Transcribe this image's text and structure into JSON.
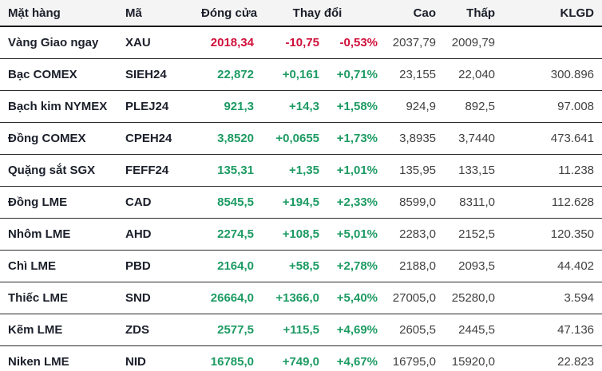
{
  "table": {
    "colors": {
      "up": "#1d9b63",
      "down": "#d0103a",
      "header_text": "#1b1f2a",
      "secondary_text": "#414141",
      "header_background": "#f4f4f4",
      "row_border": "#2b2b2b"
    },
    "headers": {
      "name": "Mặt hàng",
      "code": "Mã",
      "close": "Đóng cửa",
      "change": "Thay đổi",
      "high": "Cao",
      "low": "Thấp",
      "volume": "KLGD"
    },
    "rows": [
      {
        "name": "Vàng Giao ngay",
        "code": "XAU",
        "close": "2018,34",
        "change": "-10,75",
        "change_pct": "-0,53%",
        "high": "2037,79",
        "low": "2009,79",
        "volume": "",
        "direction": "down"
      },
      {
        "name": "Bạc COMEX",
        "code": "SIEH24",
        "close": "22,872",
        "change": "+0,161",
        "change_pct": "+0,71%",
        "high": "23,155",
        "low": "22,040",
        "volume": "300.896",
        "direction": "up"
      },
      {
        "name": "Bạch kim NYMEX",
        "code": "PLEJ24",
        "close": "921,3",
        "change": "+14,3",
        "change_pct": "+1,58%",
        "high": "924,9",
        "low": "892,5",
        "volume": "97.008",
        "direction": "up"
      },
      {
        "name": "Đồng COMEX",
        "code": "CPEH24",
        "close": "3,8520",
        "change": "+0,0655",
        "change_pct": "+1,73%",
        "high": "3,8935",
        "low": "3,7440",
        "volume": "473.641",
        "direction": "up"
      },
      {
        "name": "Quặng sắt SGX",
        "code": "FEFF24",
        "close": "135,31",
        "change": "+1,35",
        "change_pct": "+1,01%",
        "high": "135,95",
        "low": "133,15",
        "volume": "11.238",
        "direction": "up"
      },
      {
        "name": "Đồng LME",
        "code": "CAD",
        "close": "8545,5",
        "change": "+194,5",
        "change_pct": "+2,33%",
        "high": "8599,0",
        "low": "8311,0",
        "volume": "112.628",
        "direction": "up"
      },
      {
        "name": "Nhôm LME",
        "code": "AHD",
        "close": "2274,5",
        "change": "+108,5",
        "change_pct": "+5,01%",
        "high": "2283,0",
        "low": "2152,5",
        "volume": "120.350",
        "direction": "up"
      },
      {
        "name": "Chì LME",
        "code": "PBD",
        "close": "2164,0",
        "change": "+58,5",
        "change_pct": "+2,78%",
        "high": "2188,0",
        "low": "2093,5",
        "volume": "44.402",
        "direction": "up"
      },
      {
        "name": "Thiếc LME",
        "code": "SND",
        "close": "26664,0",
        "change": "+1366,0",
        "change_pct": "+5,40%",
        "high": "27005,0",
        "low": "25280,0",
        "volume": "3.594",
        "direction": "up"
      },
      {
        "name": "Kẽm LME",
        "code": "ZDS",
        "close": "2577,5",
        "change": "+115,5",
        "change_pct": "+4,69%",
        "high": "2605,5",
        "low": "2445,5",
        "volume": "47.136",
        "direction": "up"
      },
      {
        "name": "Niken LME",
        "code": "NID",
        "close": "16785,0",
        "change": "+749,0",
        "change_pct": "+4,67%",
        "high": "16795,0",
        "low": "15920,0",
        "volume": "22.823",
        "direction": "up"
      }
    ]
  }
}
